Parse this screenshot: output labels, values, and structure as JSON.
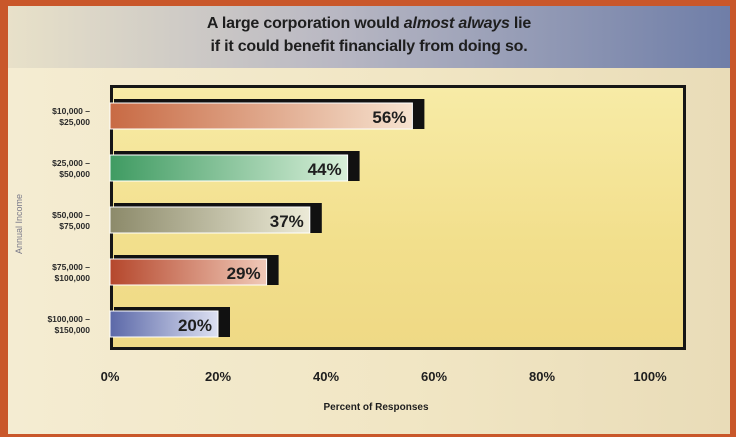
{
  "chart_data": {
    "type": "bar",
    "orientation": "horizontal",
    "title_line1_a": "A large corporation would ",
    "title_line1_em": "almost always",
    "title_line1_b": " lie",
    "title_line2": "if it could benefit financially from doing so.",
    "ylabel": "Annual Income",
    "xlabel": "Percent of Responses",
    "categories": [
      [
        "$10,000 –",
        "$25,000"
      ],
      [
        "$25,000 –",
        "$50,000"
      ],
      [
        "$50,000 –",
        "$75,000"
      ],
      [
        "$75,000 –",
        "$100,000"
      ],
      [
        "$100,000 –",
        "$150,000"
      ]
    ],
    "values": [
      56,
      44,
      37,
      29,
      20
    ],
    "value_labels": [
      "56%",
      "44%",
      "37%",
      "29%",
      "20%"
    ],
    "xticks": [
      0,
      20,
      40,
      60,
      80,
      100
    ],
    "xtick_labels": [
      "0%",
      "20%",
      "40%",
      "60%",
      "80%",
      "100%"
    ],
    "xlim": [
      0,
      100
    ],
    "grid": false,
    "legend": "none",
    "bar_colors": [
      [
        "#c86a44",
        "#f6e2cf"
      ],
      [
        "#3f9b62",
        "#d8efd9"
      ],
      [
        "#8c8a6a",
        "#ecead7"
      ],
      [
        "#b5472c",
        "#f0c9b8"
      ],
      [
        "#5b68a8",
        "#dde1f2"
      ]
    ]
  }
}
